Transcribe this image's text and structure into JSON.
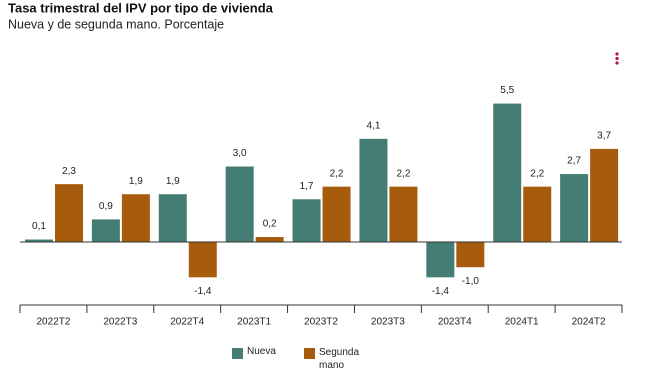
{
  "chart_data": {
    "type": "bar",
    "title": "Tasa trimestral del IPV por tipo de vivienda",
    "subtitle": "Nueva y de segunda mano. Porcentaje",
    "categories": [
      "2022T2",
      "2022T3",
      "2022T4",
      "2023T1",
      "2023T2",
      "2023T3",
      "2023T4",
      "2024T1",
      "2024T2"
    ],
    "series": [
      {
        "name": "Nueva",
        "color": "#437d74",
        "values": [
          0.1,
          0.9,
          1.9,
          3.0,
          1.7,
          4.1,
          -1.4,
          5.5,
          2.7
        ],
        "value_labels": [
          "0,1",
          "0,9",
          "1,9",
          "3,0",
          "1,7",
          "4,1",
          "-1,4",
          "5,5",
          "2,7"
        ]
      },
      {
        "name": "Segunda mano",
        "color": "#a65c0c",
        "values": [
          2.3,
          1.9,
          -1.4,
          0.2,
          2.2,
          2.2,
          -1.0,
          2.2,
          3.7
        ],
        "value_labels": [
          "2,3",
          "1,9",
          "-1,4",
          "0,2",
          "2,2",
          "2,2",
          "-1,0",
          "2,2",
          "3,7"
        ]
      }
    ],
    "ylim": [
      -2.5,
      6.0
    ]
  }
}
